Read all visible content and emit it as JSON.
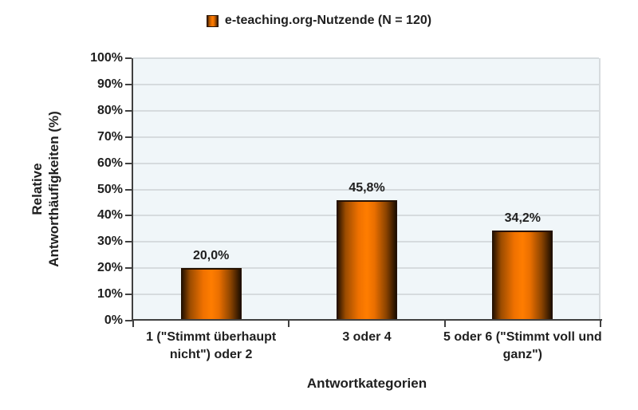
{
  "chart_data": {
    "type": "bar",
    "legend": "e-teaching.org-Nutzende (N = 120)",
    "legend_position": "top",
    "categories": [
      "1 (\"Stimmt überhaupt nicht\") oder 2",
      "3 oder 4",
      "5 oder 6 (\"Stimmt voll und ganz\")"
    ],
    "values": [
      20.0,
      45.8,
      34.2
    ],
    "value_labels": [
      "20,0%",
      "45,8%",
      "34,2%"
    ],
    "xlabel": "Antwortkategorien",
    "ylabel": "Relative Antworthäufigkeiten (%)",
    "ylabel_lines": [
      "Relative",
      "Antworthäufigkeiten (%)"
    ],
    "ylim": [
      0,
      100
    ],
    "ytick_step": 10,
    "ytick_labels": [
      "0%",
      "10%",
      "20%",
      "30%",
      "40%",
      "50%",
      "60%",
      "70%",
      "80%",
      "90%",
      "100%"
    ],
    "grid": true,
    "colors": {
      "bar_main": "#ff7d00",
      "bar_edge": "#241100",
      "plot_bg": "#f0f6f9",
      "gridline": "#d6dbde",
      "axis": "#404040",
      "text": "#1f1f1f",
      "background": "#ffffff"
    }
  }
}
